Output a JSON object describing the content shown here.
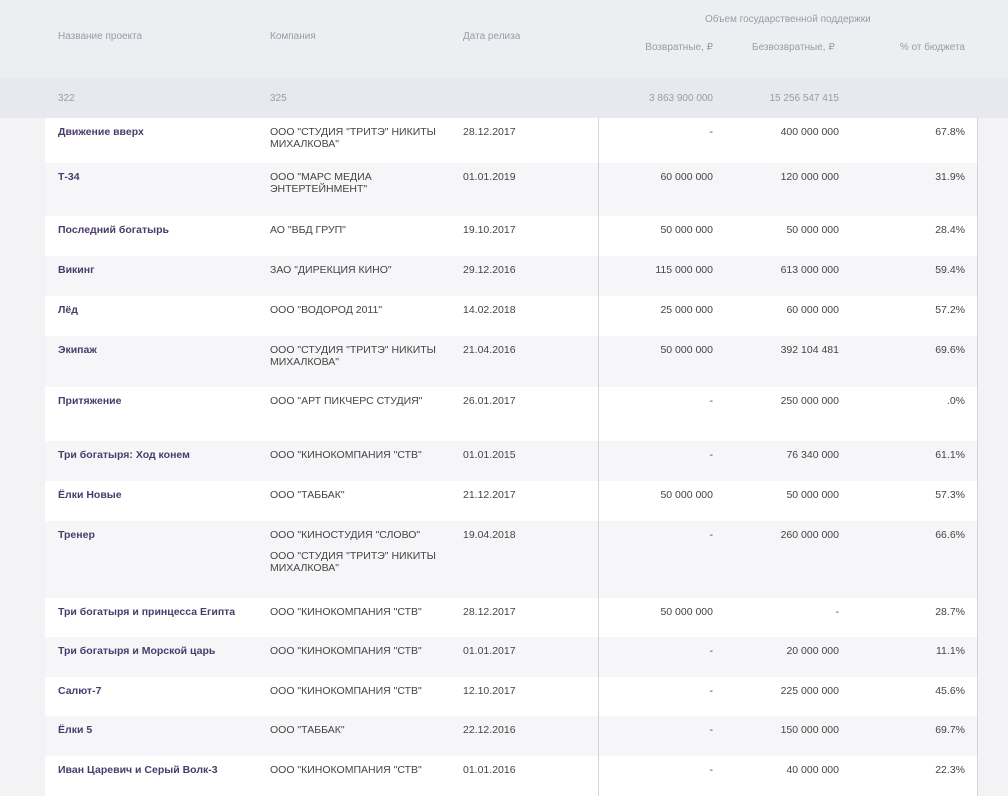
{
  "header": {
    "group": "Объем государственной поддержки",
    "columns": [
      "Название проекта",
      "Компания",
      "Дата релиза",
      "Возвратные, ₽",
      "Безвозвратные, ₽",
      "% от бюджета"
    ]
  },
  "summary": {
    "projects": "322",
    "companies": "325",
    "returnable": "3 863 900 000",
    "nonreturnable": "15 256 547 415"
  },
  "rows": [
    {
      "title": "Движение вверх",
      "company": [
        "ООО \"СТУДИЯ \"ТРИТЭ\" НИКИТЫ МИХАЛКОВА\""
      ],
      "date": "28.12.2017",
      "returnable": "-",
      "nonreturnable": "400 000 000",
      "percent": "67.8%"
    },
    {
      "title": "Т-34",
      "company": [
        "ООО \"МАРС МЕДИА ЭНТЕРТЕЙНМЕНТ\""
      ],
      "date": "01.01.2019",
      "returnable": "60 000 000",
      "nonreturnable": "120 000 000",
      "percent": "31.9%"
    },
    {
      "title": "Последний богатырь",
      "company": [
        "АО \"ВБД ГРУП\""
      ],
      "date": "19.10.2017",
      "returnable": "50 000 000",
      "nonreturnable": "50 000 000",
      "percent": "28.4%"
    },
    {
      "title": "Викинг",
      "company": [
        "ЗАО \"ДИРЕКЦИЯ КИНО\""
      ],
      "date": "29.12.2016",
      "returnable": "115 000 000",
      "nonreturnable": "613 000 000",
      "percent": "59.4%"
    },
    {
      "title": "Лёд",
      "company": [
        "ООО \"ВОДОРОД 2011\""
      ],
      "date": "14.02.2018",
      "returnable": "25 000 000",
      "nonreturnable": "60 000 000",
      "percent": "57.2%"
    },
    {
      "title": "Экипаж",
      "company": [
        "ООО \"СТУДИЯ \"ТРИТЭ\" НИКИТЫ МИХАЛКОВА\""
      ],
      "date": "21.04.2016",
      "returnable": "50 000 000",
      "nonreturnable": "392 104 481",
      "percent": "69.6%"
    },
    {
      "title": "Притяжение",
      "company": [
        "ООО \"АРТ ПИКЧЕРС СТУДИЯ\""
      ],
      "date": "26.01.2017",
      "returnable": "-",
      "nonreturnable": "250 000 000",
      "percent": ".0%"
    },
    {
      "title": "Три богатыря: Ход конем",
      "company": [
        "ООО \"КИНОКОМПАНИЯ \"СТВ\""
      ],
      "date": "01.01.2015",
      "returnable": "-",
      "nonreturnable": "76 340 000",
      "percent": "61.1%"
    },
    {
      "title": "Ёлки Новые",
      "company": [
        "ООО \"ТАББАК\""
      ],
      "date": "21.12.2017",
      "returnable": "50 000 000",
      "nonreturnable": "50 000 000",
      "percent": "57.3%"
    },
    {
      "title": "Тренер",
      "company": [
        "ООО \"КИНОСТУДИЯ \"СЛОВО\"",
        "ООО \"СТУДИЯ \"ТРИТЭ\" НИКИТЫ МИХАЛКОВА\""
      ],
      "date": "19.04.2018",
      "returnable": "-",
      "nonreturnable": "260 000 000",
      "percent": "66.6%"
    },
    {
      "title": "Три богатыря и принцесса Египта",
      "company": [
        "ООО \"КИНОКОМПАНИЯ \"СТВ\""
      ],
      "date": "28.12.2017",
      "returnable": "50 000 000",
      "nonreturnable": "-",
      "percent": "28.7%"
    },
    {
      "title": "Три богатыря и Морской царь",
      "company": [
        "ООО \"КИНОКОМПАНИЯ \"СТВ\""
      ],
      "date": "01.01.2017",
      "returnable": "-",
      "nonreturnable": "20 000 000",
      "percent": "11.1%"
    },
    {
      "title": "Салют-7",
      "company": [
        "ООО \"КИНОКОМПАНИЯ \"СТВ\""
      ],
      "date": "12.10.2017",
      "returnable": "-",
      "nonreturnable": "225 000 000",
      "percent": "45.6%"
    },
    {
      "title": "Ёлки 5",
      "company": [
        "ООО \"ТАББАК\""
      ],
      "date": "22.12.2016",
      "returnable": "-",
      "nonreturnable": "150 000 000",
      "percent": "69.7%"
    },
    {
      "title": "Иван Царевич и Серый Волк-3",
      "company": [
        "ООО \"КИНОКОМПАНИЯ \"СТВ\""
      ],
      "date": "01.01.2016",
      "returnable": "-",
      "nonreturnable": "40 000 000",
      "percent": "22.3%"
    }
  ]
}
